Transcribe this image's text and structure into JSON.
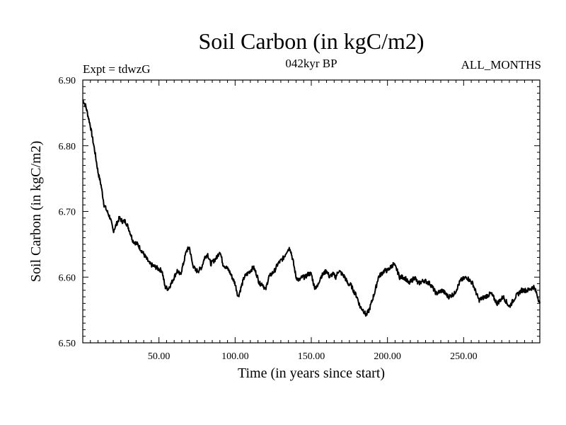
{
  "chart_data": {
    "type": "line",
    "title": "Soil Carbon (in kgC/m2)",
    "subtitle": "042kyr BP",
    "left_annotation": "Expt = tdwzG",
    "right_annotation": "ALL_MONTHS",
    "xlabel": "Time (in years since start)",
    "ylabel": "Soil Carbon (in kgC/m2)",
    "xlim": [
      0,
      300
    ],
    "ylim": [
      6.5,
      6.9
    ],
    "x_ticks": [
      50,
      100,
      150,
      200,
      250
    ],
    "x_tick_labels": [
      "50.00",
      "100.00",
      "150.00",
      "200.00",
      "250.00"
    ],
    "y_ticks": [
      6.5,
      6.6,
      6.7,
      6.8,
      6.9
    ],
    "y_tick_labels": [
      "6.50",
      "6.60",
      "6.70",
      "6.80",
      "6.90"
    ],
    "grid": false,
    "series": [
      {
        "name": "",
        "color": "#000000",
        "x": [
          0,
          2,
          5,
          8,
          10,
          12,
          14,
          16,
          18,
          20,
          22,
          24,
          26,
          28,
          30,
          33,
          36,
          40,
          44,
          48,
          50,
          52,
          54,
          56,
          58,
          60,
          62,
          64,
          66,
          68,
          70,
          72,
          74,
          76,
          78,
          80,
          82,
          84,
          86,
          88,
          90,
          92,
          94,
          96,
          98,
          100,
          102,
          104,
          106,
          108,
          110,
          112,
          114,
          116,
          118,
          120,
          122,
          124,
          126,
          128,
          130,
          132,
          134,
          136,
          138,
          140,
          142,
          144,
          146,
          148,
          150,
          152,
          154,
          156,
          158,
          160,
          162,
          164,
          166,
          168,
          170,
          172,
          174,
          176,
          178,
          180,
          182,
          184,
          186,
          188,
          190,
          192,
          194,
          196,
          198,
          200,
          202,
          204,
          206,
          208,
          210,
          212,
          214,
          216,
          218,
          220,
          224,
          228,
          232,
          236,
          240,
          244,
          248,
          252,
          256,
          260,
          264,
          268,
          272,
          276,
          280,
          284,
          288,
          292,
          296,
          298,
          300
        ],
        "values": [
          6.87,
          6.86,
          6.83,
          6.79,
          6.76,
          6.74,
          6.71,
          6.7,
          6.69,
          6.67,
          6.68,
          6.69,
          6.685,
          6.685,
          6.675,
          6.655,
          6.65,
          6.635,
          6.62,
          6.615,
          6.612,
          6.61,
          6.585,
          6.582,
          6.59,
          6.6,
          6.61,
          6.603,
          6.62,
          6.64,
          6.645,
          6.62,
          6.61,
          6.61,
          6.615,
          6.63,
          6.635,
          6.62,
          6.625,
          6.63,
          6.64,
          6.62,
          6.615,
          6.61,
          6.6,
          6.59,
          6.57,
          6.585,
          6.6,
          6.605,
          6.61,
          6.615,
          6.605,
          6.59,
          6.59,
          6.58,
          6.6,
          6.605,
          6.61,
          6.62,
          6.625,
          6.63,
          6.64,
          6.645,
          6.625,
          6.6,
          6.595,
          6.6,
          6.6,
          6.605,
          6.605,
          6.585,
          6.585,
          6.6,
          6.605,
          6.61,
          6.6,
          6.605,
          6.6,
          6.61,
          6.605,
          6.6,
          6.59,
          6.588,
          6.578,
          6.57,
          6.555,
          6.55,
          6.542,
          6.55,
          6.565,
          6.58,
          6.6,
          6.605,
          6.61,
          6.61,
          6.615,
          6.62,
          6.612,
          6.6,
          6.6,
          6.598,
          6.59,
          6.595,
          6.6,
          6.59,
          6.595,
          6.59,
          6.575,
          6.58,
          6.57,
          6.575,
          6.595,
          6.6,
          6.59,
          6.565,
          6.57,
          6.575,
          6.56,
          6.57,
          6.555,
          6.57,
          6.58,
          6.58,
          6.585,
          6.575,
          6.56
        ]
      }
    ]
  }
}
